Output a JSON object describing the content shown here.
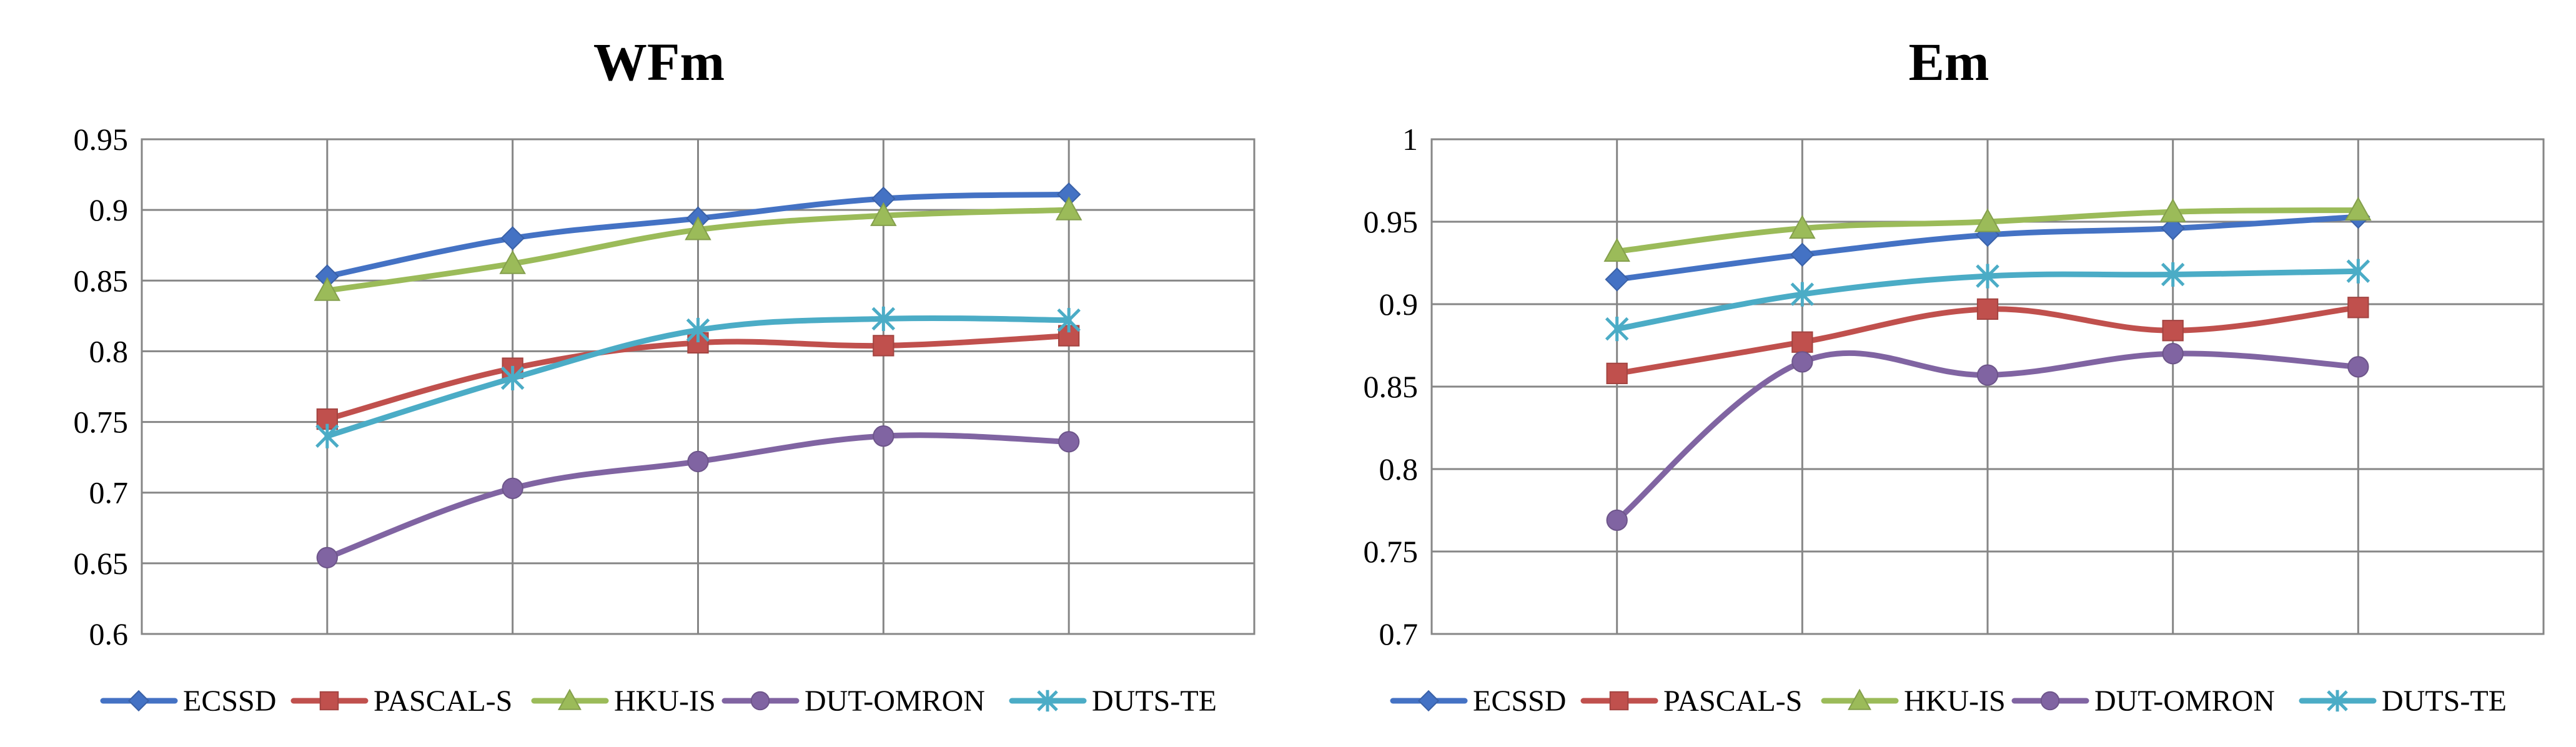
{
  "chart_data": [
    {
      "type": "line",
      "title": "WFm",
      "xlabel": "",
      "ylabel": "",
      "x": [
        1,
        2,
        3,
        4,
        5
      ],
      "x_tick_labels_shown": false,
      "ylim": [
        0.6,
        0.95
      ],
      "yticks": [
        0.6,
        0.65,
        0.7,
        0.75,
        0.8,
        0.85,
        0.9,
        0.95
      ],
      "ytick_labels": [
        "0.6",
        "0.65",
        "0.7",
        "0.75",
        "0.8",
        "0.85",
        "0.9",
        "0.95"
      ],
      "grid": true,
      "smooth": true,
      "legend_position": "bottom",
      "series": [
        {
          "name": "ECSSD",
          "color": "#4472C4",
          "marker": "diamond",
          "values": [
            0.853,
            0.88,
            0.894,
            0.908,
            0.911
          ]
        },
        {
          "name": "PASCAL-S",
          "color": "#C0504D",
          "marker": "square",
          "values": [
            0.752,
            0.788,
            0.806,
            0.804,
            0.811
          ]
        },
        {
          "name": "HKU-IS",
          "color": "#9BBB59",
          "marker": "triangle",
          "values": [
            0.843,
            0.862,
            0.886,
            0.896,
            0.9
          ]
        },
        {
          "name": "DUT-OMRON",
          "color": "#8064A2",
          "marker": "circle",
          "values": [
            0.654,
            0.703,
            0.722,
            0.74,
            0.736
          ]
        },
        {
          "name": "DUTS-TE",
          "color": "#4BACC6",
          "marker": "star",
          "values": [
            0.74,
            0.781,
            0.815,
            0.823,
            0.822
          ]
        }
      ]
    },
    {
      "type": "line",
      "title": "Em",
      "xlabel": "",
      "ylabel": "",
      "x": [
        1,
        2,
        3,
        4,
        5
      ],
      "x_tick_labels_shown": false,
      "ylim": [
        0.7,
        1.0
      ],
      "yticks": [
        0.7,
        0.75,
        0.8,
        0.85,
        0.9,
        0.95,
        1.0
      ],
      "ytick_labels": [
        "0.7",
        "0.75",
        "0.8",
        "0.85",
        "0.9",
        "0.95",
        "1"
      ],
      "grid": true,
      "smooth": true,
      "legend_position": "bottom",
      "series": [
        {
          "name": "ECSSD",
          "color": "#4472C4",
          "marker": "diamond",
          "values": [
            0.915,
            0.93,
            0.942,
            0.946,
            0.953
          ]
        },
        {
          "name": "PASCAL-S",
          "color": "#C0504D",
          "marker": "square",
          "values": [
            0.858,
            0.877,
            0.897,
            0.884,
            0.898
          ]
        },
        {
          "name": "HKU-IS",
          "color": "#9BBB59",
          "marker": "triangle",
          "values": [
            0.932,
            0.946,
            0.95,
            0.956,
            0.957
          ]
        },
        {
          "name": "DUT-OMRON",
          "color": "#8064A2",
          "marker": "circle",
          "values": [
            0.769,
            0.865,
            0.857,
            0.87,
            0.862
          ]
        },
        {
          "name": "DUTS-TE",
          "color": "#4BACC6",
          "marker": "star",
          "values": [
            0.885,
            0.906,
            0.917,
            0.918,
            0.92
          ]
        }
      ]
    }
  ]
}
